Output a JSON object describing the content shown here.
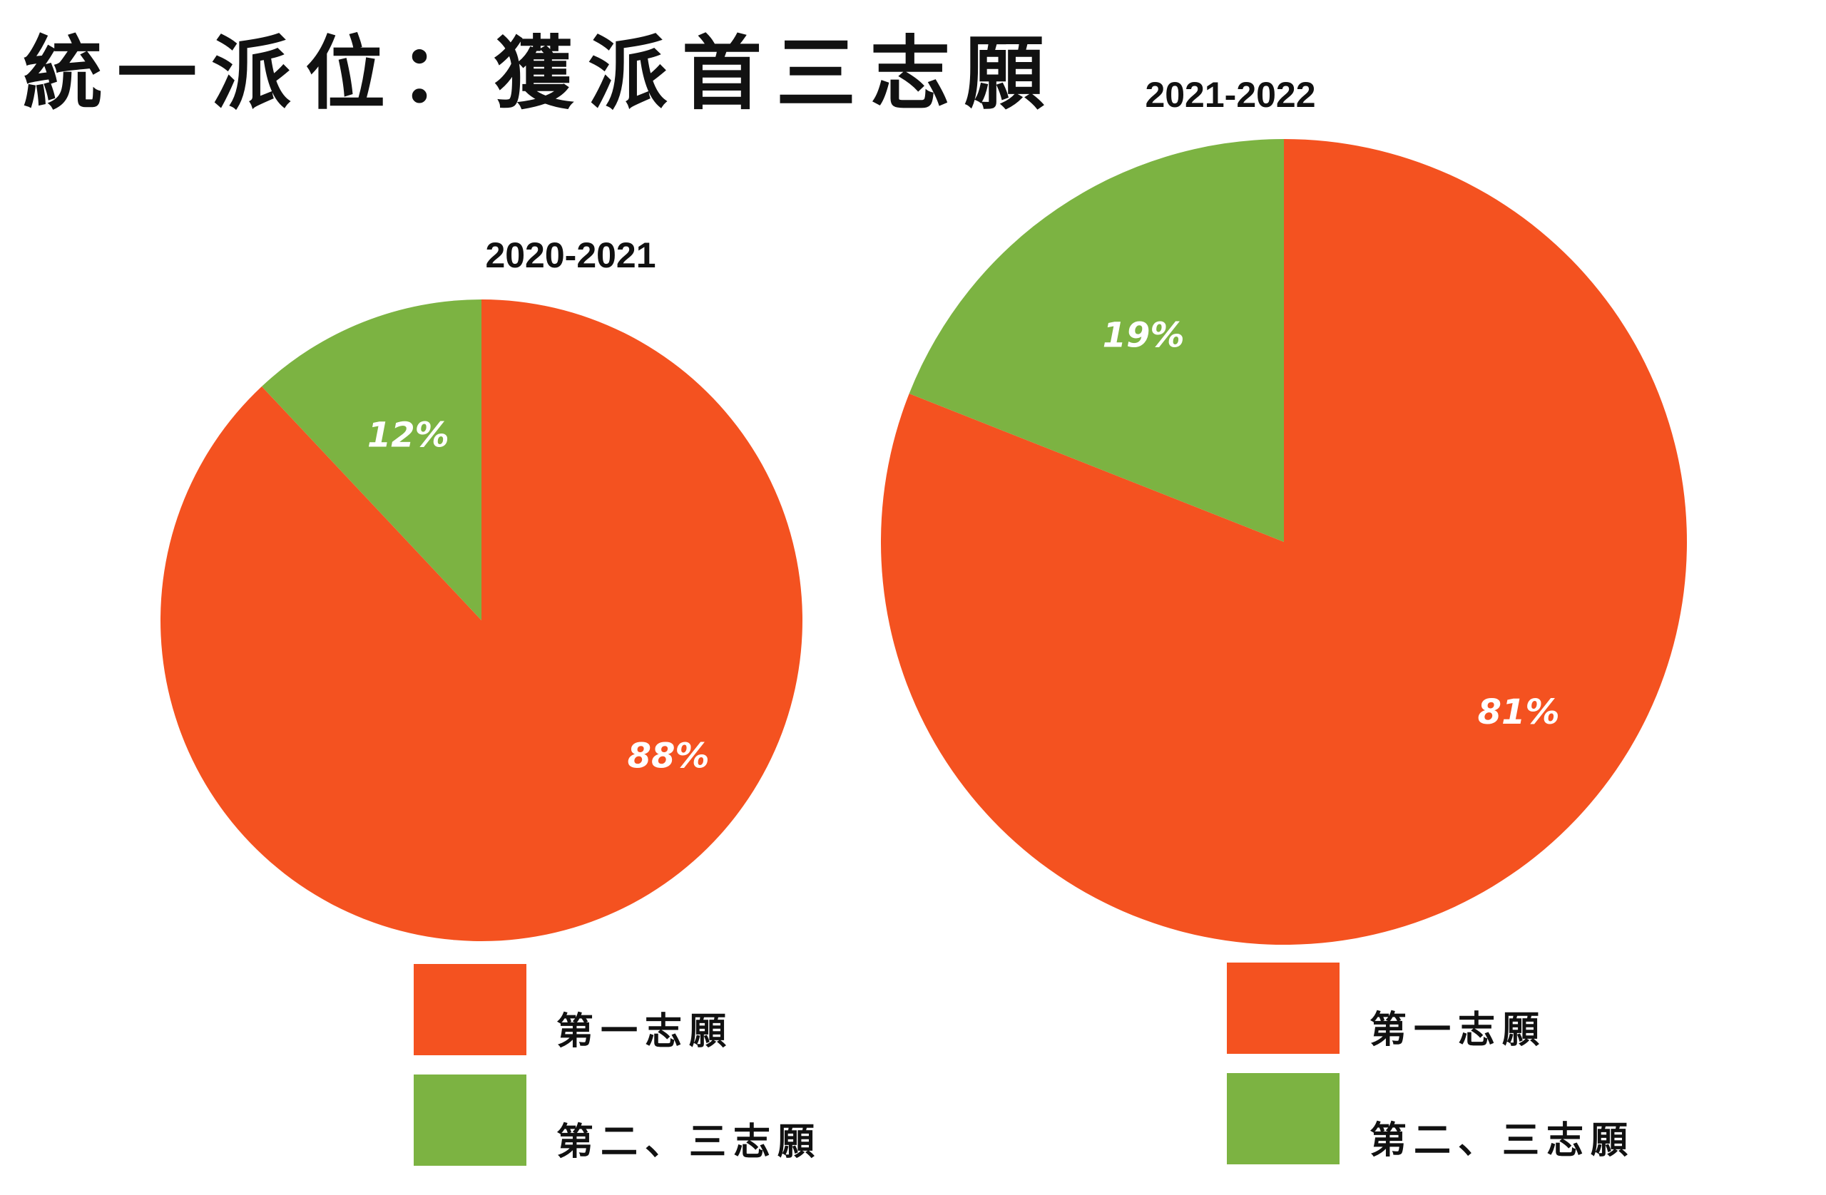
{
  "page": {
    "title": "統一派位：獲派首三志願"
  },
  "colors": {
    "first_choice": "#F45220",
    "second_third_choice": "#7CB342",
    "slice_text": "#FFFFFF"
  },
  "chart_data": [
    {
      "type": "pie",
      "title": "2020-2021",
      "categories": [
        "第一志願",
        "第二、三志願"
      ],
      "values": [
        88,
        12
      ],
      "labels": [
        "88%",
        "12%"
      ],
      "colors": [
        "#F45220",
        "#7CB342"
      ],
      "start": "top, clockwise",
      "legend": "below"
    },
    {
      "type": "pie",
      "title": "2021-2022",
      "categories": [
        "第一志願",
        "第二、三志願"
      ],
      "values": [
        81,
        19
      ],
      "labels": [
        "81%",
        "19%"
      ],
      "colors": [
        "#F45220",
        "#7CB342"
      ],
      "start": "top, clockwise",
      "legend": "below"
    }
  ]
}
